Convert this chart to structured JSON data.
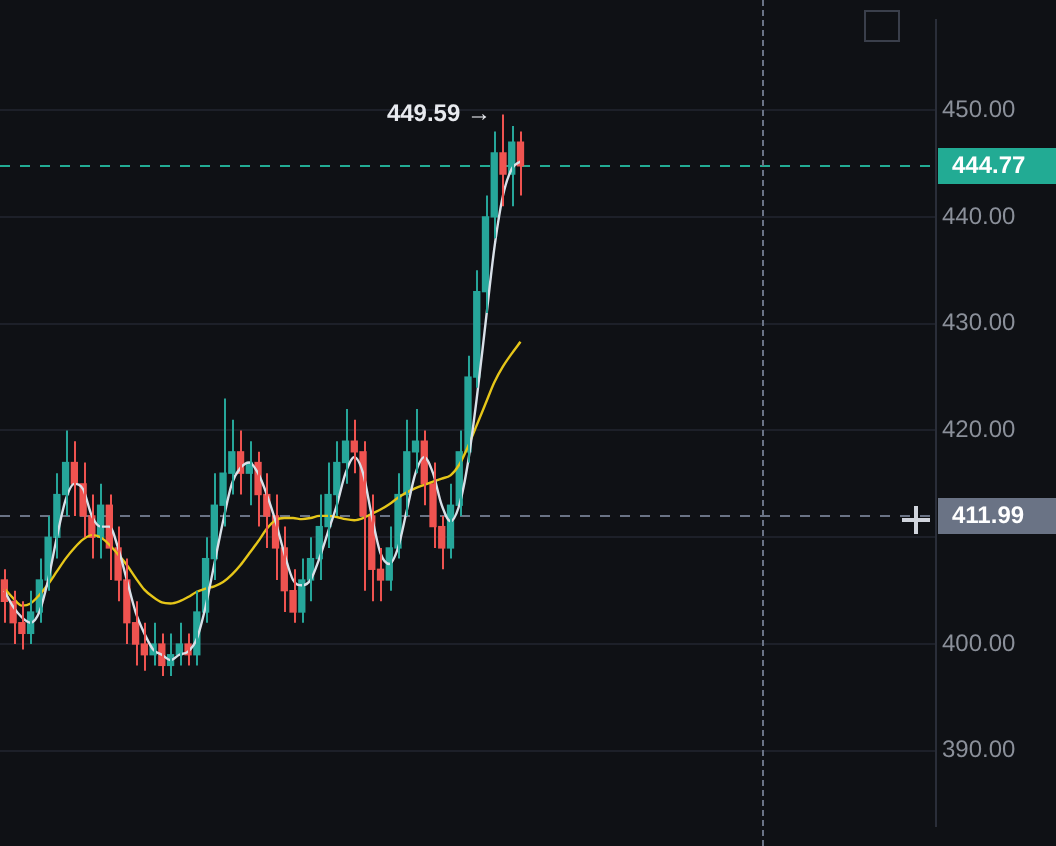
{
  "chart_data": {
    "type": "candlestick",
    "categories": [
      null,
      null,
      null,
      null,
      null,
      null,
      null,
      null,
      null,
      null,
      null,
      null,
      null,
      null,
      null,
      null,
      null,
      null,
      null,
      null,
      null,
      null,
      null,
      null,
      null,
      null,
      null,
      null,
      null,
      null,
      null,
      null,
      null,
      null,
      null,
      null,
      null,
      null,
      null,
      null,
      null,
      null,
      null,
      null,
      null,
      null,
      null,
      null,
      null,
      null,
      null,
      null,
      null,
      null,
      null,
      null,
      null,
      null,
      null,
      null,
      null,
      null,
      null,
      null,
      null,
      null,
      null,
      null,
      null,
      null,
      null,
      null,
      null,
      null,
      null,
      null,
      null,
      null,
      null,
      null,
      null,
      null,
      null,
      null,
      null,
      null,
      null,
      null,
      null,
      null,
      null,
      null,
      null,
      null,
      null,
      null,
      null,
      null,
      null,
      null,
      null,
      null,
      null,
      null,
      null,
      null,
      null
    ],
    "ohlc": [
      [
        406,
        407,
        402,
        404
      ],
      [
        404,
        405,
        400,
        402
      ],
      [
        402,
        404,
        399.5,
        401
      ],
      [
        401,
        405,
        400,
        403
      ],
      [
        403,
        408,
        402,
        406
      ],
      [
        406,
        412,
        405,
        410
      ],
      [
        410,
        416,
        408,
        414
      ],
      [
        414,
        420,
        412,
        417
      ],
      [
        417,
        419,
        412,
        415
      ],
      [
        415,
        417,
        410,
        412
      ],
      [
        412,
        414,
        408,
        410
      ],
      [
        410,
        415,
        408,
        413
      ],
      [
        413,
        414,
        406,
        409
      ],
      [
        409,
        411,
        404,
        406
      ],
      [
        406,
        408,
        400,
        402
      ],
      [
        402,
        404,
        398,
        400
      ],
      [
        400,
        402,
        397.5,
        399
      ],
      [
        399,
        402,
        398,
        400
      ],
      [
        400,
        401,
        397,
        398
      ],
      [
        398,
        401,
        397,
        399
      ],
      [
        399,
        402,
        398,
        400
      ],
      [
        400,
        401,
        398,
        399
      ],
      [
        399,
        405,
        398,
        403
      ],
      [
        403,
        410,
        402,
        408
      ],
      [
        408,
        416,
        406,
        413
      ],
      [
        413,
        423,
        411,
        416
      ],
      [
        416,
        421,
        414,
        418
      ],
      [
        418,
        420,
        414,
        416
      ],
      [
        416,
        419,
        413,
        417
      ],
      [
        417,
        418,
        411,
        414
      ],
      [
        414,
        416,
        409,
        412
      ],
      [
        412,
        414,
        406,
        409
      ],
      [
        409,
        411,
        403,
        405
      ],
      [
        405,
        407,
        402,
        403
      ],
      [
        403,
        408,
        402,
        406
      ],
      [
        406,
        410,
        404,
        408
      ],
      [
        408,
        414,
        406,
        411
      ],
      [
        411,
        417,
        409,
        414
      ],
      [
        414,
        419,
        412,
        417
      ],
      [
        417,
        422,
        415,
        419
      ],
      [
        419,
        421,
        416,
        418
      ],
      [
        418,
        419,
        405,
        412
      ],
      [
        412,
        414,
        404,
        407
      ],
      [
        407,
        409,
        404,
        406
      ],
      [
        406,
        411,
        405,
        409
      ],
      [
        409,
        416,
        408,
        414
      ],
      [
        414,
        421,
        412,
        418
      ],
      [
        418,
        422,
        416,
        419
      ],
      [
        419,
        420,
        413,
        415
      ],
      [
        415,
        417,
        409,
        411
      ],
      [
        411,
        412,
        407,
        409
      ],
      [
        409,
        415,
        408,
        413
      ],
      [
        413,
        420,
        412,
        418
      ],
      [
        418,
        427,
        417,
        425
      ],
      [
        425,
        435,
        424,
        433
      ],
      [
        433,
        442,
        431,
        440
      ],
      [
        440,
        448,
        438,
        446
      ],
      [
        446,
        449.59,
        441,
        444
      ],
      [
        444,
        448.5,
        441,
        447
      ],
      [
        447,
        448,
        442,
        444.77
      ],
      null,
      null,
      null,
      null,
      null,
      null,
      null,
      null,
      null,
      null,
      null,
      null,
      null,
      null,
      null,
      null,
      null,
      null,
      null,
      null,
      null,
      null,
      null,
      null,
      null,
      null,
      null,
      null,
      null,
      null,
      null,
      null,
      null,
      null,
      null,
      null,
      null,
      null,
      null,
      null,
      null,
      null,
      null,
      null,
      null,
      null,
      null
    ],
    "series": [
      {
        "type": "line",
        "color": "#d8e0e8",
        "values": [
          405,
          403.5,
          402.5,
          402,
          403,
          406,
          410,
          413.5,
          415,
          414.5,
          412,
          411,
          411,
          409,
          406,
          403,
          401,
          399.5,
          399,
          398.5,
          399,
          399.3,
          400.5,
          403.5,
          407.5,
          411.5,
          415,
          416.5,
          417,
          416,
          414,
          411.5,
          408.5,
          406,
          405.5,
          406,
          408,
          410.5,
          413,
          416,
          417.5,
          416,
          412,
          408.5,
          407.5,
          409,
          412.5,
          416,
          417.5,
          416,
          413,
          411.5,
          413,
          417,
          423,
          430,
          437,
          442,
          444.5,
          445.2,
          null,
          null,
          null,
          null,
          null,
          null,
          null,
          null,
          null,
          null,
          null,
          null,
          null,
          null,
          null,
          null,
          null,
          null,
          null,
          null,
          null,
          null,
          null,
          null,
          null,
          null,
          null,
          null,
          null,
          null,
          null,
          null,
          null,
          null,
          null,
          null,
          null,
          null,
          null,
          null,
          null,
          null,
          null,
          null,
          null,
          null,
          null
        ]
      },
      {
        "type": "line",
        "color": "#e6c619",
        "values": [
          405.2,
          404.3,
          403.6,
          403.8,
          404.6,
          405.6,
          406.8,
          408,
          409,
          409.8,
          410.2,
          410,
          409.3,
          408.4,
          407.4,
          406.2,
          405.1,
          404.4,
          403.9,
          403.8,
          404,
          404.4,
          404.9,
          405.2,
          405.4,
          405.8,
          406.5,
          407.4,
          408.5,
          409.6,
          410.8,
          411.6,
          411.8,
          411.8,
          411.7,
          411.8,
          412,
          412,
          411.9,
          411.7,
          411.6,
          411.8,
          412.2,
          412.6,
          413.1,
          413.7,
          414.2,
          414.6,
          414.9,
          415.2,
          415.5,
          415.8,
          416.8,
          418.5,
          420.5,
          422.5,
          424.5,
          426,
          427.2,
          428.3,
          null,
          null,
          null,
          null,
          null,
          null,
          null,
          null,
          null,
          null,
          null,
          null,
          null,
          null,
          null,
          null,
          null,
          null,
          null,
          null,
          null,
          null,
          null,
          null,
          null,
          null,
          null,
          null,
          null,
          null,
          null,
          null,
          null,
          null,
          null,
          null,
          null,
          null,
          null,
          null,
          null,
          null,
          null,
          null,
          null,
          null,
          null
        ]
      }
    ],
    "ylim": [
      383,
      458.4
    ],
    "yticks": [
      {
        "value": 390,
        "label": "390.00"
      },
      {
        "value": 400,
        "label": "400.00"
      },
      {
        "value": 410,
        "label": null
      },
      {
        "value": 420,
        "label": "420.00"
      },
      {
        "value": 430,
        "label": "430.00"
      },
      {
        "value": 440,
        "label": "440.00"
      },
      {
        "value": 450,
        "label": "450.00"
      }
    ],
    "ref_lines": [
      {
        "axis": "y",
        "value": 444.77,
        "label": "444.77",
        "color": "#22ab94",
        "line_style": "dashed"
      },
      {
        "axis": "y",
        "value": 411.99,
        "label": "411.99",
        "color": "#6a7385",
        "line_style": "dashed"
      }
    ],
    "annotations": [
      "449.59 →"
    ],
    "grid": "y",
    "legend": false,
    "tick_labels": "y"
  }
}
